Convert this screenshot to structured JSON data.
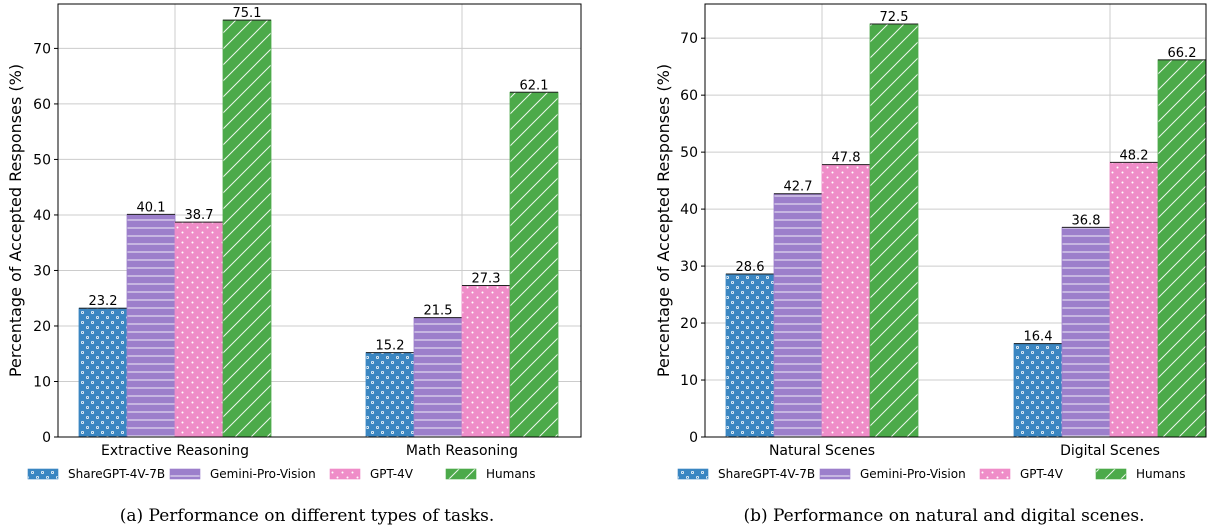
{
  "series_colors": {
    "ShareGPT-4V-7B": "#3a86c2",
    "Gemini-Pro-Vision": "#9c7fcb",
    "GPT-4V": "#ef8dc8",
    "Humans": "#4caa4a"
  },
  "patterns": {
    "ShareGPT-4V-7B": "dots",
    "Gemini-Pro-Vision": "horizontal-lines",
    "GPT-4V": "dots",
    "Humans": "diagonal-lines"
  },
  "chart_data": [
    {
      "type": "bar",
      "caption": "(a)  Performance on different types of tasks.",
      "categories": [
        "Extractive Reasoning",
        "Math Reasoning"
      ],
      "series": [
        {
          "name": "ShareGPT-4V-7B",
          "values": [
            23.2,
            15.2
          ]
        },
        {
          "name": "Gemini-Pro-Vision",
          "values": [
            40.1,
            21.5
          ]
        },
        {
          "name": "GPT-4V",
          "values": [
            38.7,
            27.3
          ]
        },
        {
          "name": "Humans",
          "values": [
            75.1,
            62.1
          ]
        }
      ],
      "ylabel": "Percentage of Accepted Responses (%)",
      "xlabel": "",
      "ylim": [
        0,
        78
      ],
      "yticks": [
        0,
        10,
        20,
        30,
        40,
        50,
        60,
        70
      ],
      "grid": true,
      "legend": "bottom"
    },
    {
      "type": "bar",
      "caption": "(b)  Performance on natural and digital scenes.",
      "categories": [
        "Natural Scenes",
        "Digital Scenes"
      ],
      "series": [
        {
          "name": "ShareGPT-4V-7B",
          "values": [
            28.6,
            16.4
          ]
        },
        {
          "name": "Gemini-Pro-Vision",
          "values": [
            42.7,
            36.8
          ]
        },
        {
          "name": "GPT-4V",
          "values": [
            47.8,
            48.2
          ]
        },
        {
          "name": "Humans",
          "values": [
            72.5,
            66.2
          ]
        }
      ],
      "ylabel": "Percentage of Accepted Responses (%)",
      "xlabel": "",
      "ylim": [
        0,
        76
      ],
      "yticks": [
        0,
        10,
        20,
        30,
        40,
        50,
        60,
        70
      ],
      "grid": true,
      "legend": "bottom"
    }
  ]
}
